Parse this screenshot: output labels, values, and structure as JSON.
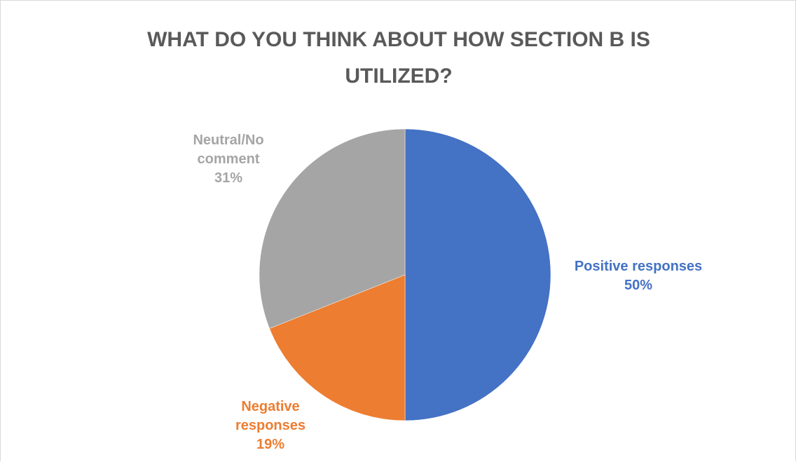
{
  "chart_data": {
    "type": "pie",
    "title": "WHAT DO YOU THINK ABOUT HOW SECTION B IS UTILIZED?",
    "title_lines": [
      "WHAT DO YOU THINK ABOUT HOW SECTION B IS",
      "UTILIZED?"
    ],
    "start_angle_deg": 0,
    "direction": "clockwise",
    "slices": [
      {
        "label": "Positive responses",
        "label_lines": [
          "Positive responses"
        ],
        "percent_label": "50%",
        "value": 50,
        "color": "#4472c4"
      },
      {
        "label": "Negative responses",
        "label_lines": [
          "Negative",
          "responses"
        ],
        "percent_label": "19%",
        "value": 19,
        "color": "#ed7d31"
      },
      {
        "label": "Neutral/No comment",
        "label_lines": [
          "Neutral/No",
          "comment"
        ],
        "percent_label": "31%",
        "value": 31,
        "color": "#a5a5a5"
      }
    ],
    "legend": "none"
  }
}
